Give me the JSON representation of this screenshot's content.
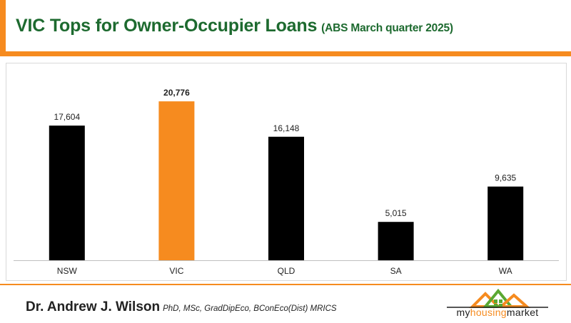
{
  "header": {
    "title": "VIC Tops for Owner-Occupier Loans",
    "subtitle": "(ABS March quarter 2025)"
  },
  "footer": {
    "author": "Dr. Andrew J. Wilson",
    "credentials": "PhD, MSc, GradDipEco, BConEco(Dist) MRICS",
    "logo": {
      "part1": "my",
      "part2": "housing",
      "part3": "market",
      "icon": "house-roofs-icon"
    }
  },
  "colors": {
    "accent": "#f68b1f",
    "title": "#1d6a2f",
    "bar_default": "#000000",
    "bar_highlight": "#f68b1f"
  },
  "chart_data": {
    "type": "bar",
    "categories": [
      "NSW",
      "VIC",
      "QLD",
      "SA",
      "WA"
    ],
    "values": [
      17604,
      20776,
      16148,
      5015,
      9635
    ],
    "value_labels": [
      "17,604",
      "20,776",
      "16,148",
      "5,015",
      "9,635"
    ],
    "highlight": "VIC",
    "ylim": [
      0,
      22000
    ],
    "grid": false,
    "legend": "none",
    "title": "",
    "xlabel": "",
    "ylabel": ""
  }
}
